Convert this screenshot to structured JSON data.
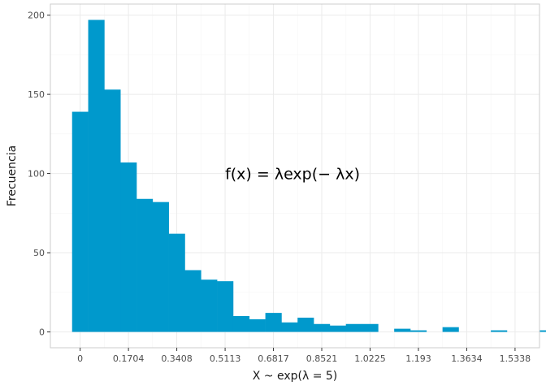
{
  "chart_data": {
    "type": "bar",
    "subtype": "histogram",
    "title": "",
    "xlabel": "X ~ exp(λ = 5)",
    "ylabel": "Frecuencia",
    "annotation": "f(x) = λexp(− λx)",
    "bin_width": 0.0568,
    "bin_start": -0.0284,
    "values": [
      139,
      197,
      153,
      107,
      84,
      82,
      62,
      39,
      33,
      32,
      10,
      8,
      12,
      6,
      9,
      5,
      4,
      5,
      5,
      0,
      2,
      1,
      0,
      3,
      0,
      0,
      1,
      0,
      0,
      1
    ],
    "x_ticks": [
      0,
      0.1704,
      0.3408,
      0.5113,
      0.6817,
      0.8521,
      1.0225,
      1.193,
      1.3634,
      1.5338
    ],
    "x_tick_labels": [
      "0",
      "0.1704",
      "0.3408",
      "0.5113",
      "0.6817",
      "0.8521",
      "1.0225",
      "1.193",
      "1.3634",
      "1.5338"
    ],
    "y_ticks": [
      0,
      50,
      100,
      150,
      200
    ],
    "y_tick_labels": [
      "0",
      "50",
      "100",
      "150",
      "200"
    ],
    "xlim": [
      -0.105,
      1.62
    ],
    "ylim": [
      -10,
      207
    ],
    "grid": true,
    "colors": {
      "bar": "#0099cc",
      "panel_border": "#cccccc",
      "grid_major": "#ebebeb",
      "grid_minor": "#f5f5f5"
    }
  }
}
